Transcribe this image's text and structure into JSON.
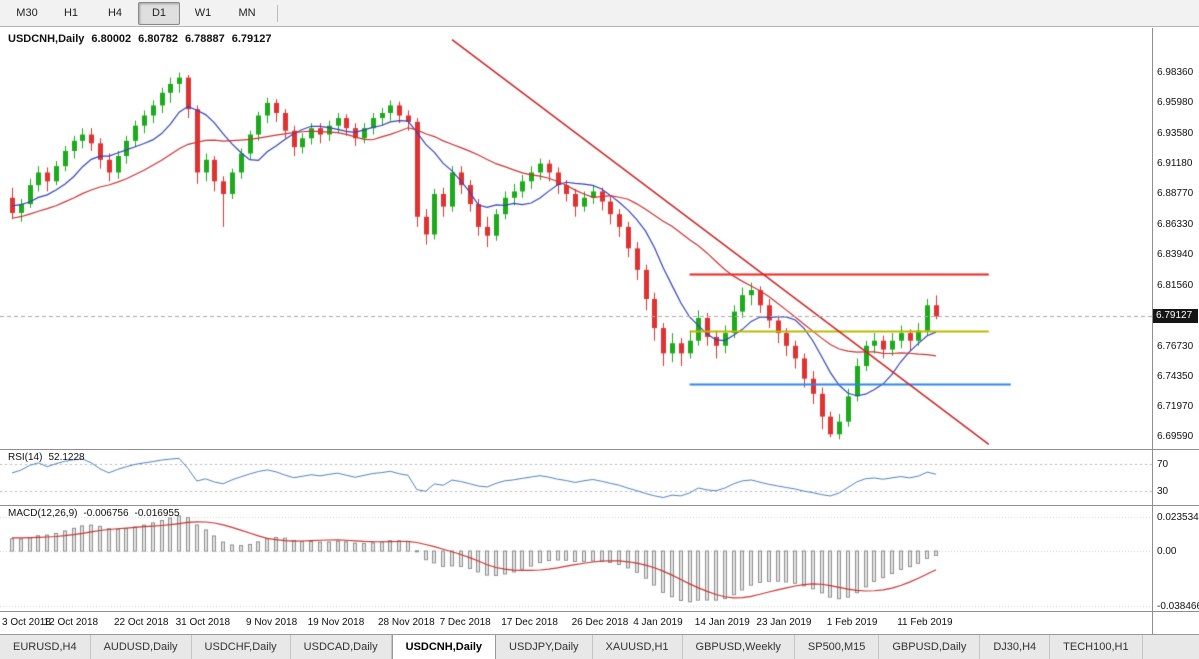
{
  "toolbar": {
    "timeframes": [
      {
        "label": "M30",
        "active": false
      },
      {
        "label": "H1",
        "active": false
      },
      {
        "label": "H4",
        "active": false
      },
      {
        "label": "D1",
        "active": true
      },
      {
        "label": "W1",
        "active": false
      },
      {
        "label": "MN",
        "active": false
      }
    ]
  },
  "chart": {
    "title": {
      "symbol": "USDCNH,Daily",
      "open": "6.80002",
      "high": "6.80782",
      "low": "6.78887",
      "close": "6.79127"
    },
    "current_price": "6.79127"
  },
  "rsi_panel": {
    "name": "RSI(14)",
    "value": "52.1228"
  },
  "macd_panel": {
    "name": "MACD(12,26,9)",
    "value1": "-0.006756",
    "value2": "-0.016955"
  },
  "tabs": [
    {
      "label": "EURUSD,H4",
      "active": false
    },
    {
      "label": "AUDUSD,Daily",
      "active": false
    },
    {
      "label": "USDCHF,Daily",
      "active": false
    },
    {
      "label": "USDCAD,Daily",
      "active": false
    },
    {
      "label": "USDCNH,Daily",
      "active": true
    },
    {
      "label": "USDJPY,Daily",
      "active": false
    },
    {
      "label": "XAUUSD,H1",
      "active": false
    },
    {
      "label": "GBPUSD,Weekly",
      "active": false
    },
    {
      "label": "SP500,M15",
      "active": false
    },
    {
      "label": "GBPUSD,Daily",
      "active": false
    },
    {
      "label": "DJ30,H4",
      "active": false
    },
    {
      "label": "TECH100,H1",
      "active": false
    }
  ],
  "chart_data": {
    "type": "candlestick",
    "title": "USDCNH,Daily",
    "up_color": "#1daa1d",
    "down_color": "#e03232",
    "ylim": [
      6.6864,
      7.0192
    ],
    "price_axis_ticks": [
      "6.98360",
      "6.95980",
      "6.93580",
      "6.91180",
      "6.88770",
      "6.86330",
      "6.83940",
      "6.81560",
      "6.76730",
      "6.74350",
      "6.71970",
      "6.69590"
    ],
    "current_price": 6.79127,
    "x_labels": [
      "3 Oct 2018",
      "12 Oct 2018",
      "22 Oct 2018",
      "31 Oct 2018",
      "9 Nov 2018",
      "19 Nov 2018",
      "28 Nov 2018",
      "7 Dec 2018",
      "17 Dec 2018",
      "26 Dec 2018",
      "4 Jan 2019",
      "14 Jan 2019",
      "23 Jan 2019",
      "1 Feb 2019",
      "11 Feb 2019"
    ],
    "x_label_indices": [
      0,
      7,
      15,
      22,
      30,
      37,
      45,
      52,
      59,
      67,
      74,
      81,
      88,
      96,
      104
    ],
    "candles": [
      [
        6.885,
        6.893,
        6.868,
        6.873
      ],
      [
        6.873,
        6.884,
        6.866,
        6.88
      ],
      [
        6.88,
        6.9,
        6.877,
        6.895
      ],
      [
        6.895,
        6.91,
        6.89,
        6.905
      ],
      [
        6.905,
        6.909,
        6.89,
        6.898
      ],
      [
        6.898,
        6.914,
        6.895,
        6.91
      ],
      [
        6.91,
        6.926,
        6.906,
        6.922
      ],
      [
        6.922,
        6.934,
        6.916,
        6.93
      ],
      [
        6.93,
        6.94,
        6.924,
        6.935
      ],
      [
        6.935,
        6.94,
        6.922,
        6.928
      ],
      [
        6.928,
        6.932,
        6.908,
        6.915
      ],
      [
        6.915,
        6.92,
        6.898,
        6.905
      ],
      [
        6.905,
        6.922,
        6.9,
        6.918
      ],
      [
        6.918,
        6.934,
        6.912,
        6.93
      ],
      [
        6.93,
        6.946,
        6.925,
        6.942
      ],
      [
        6.942,
        6.954,
        6.936,
        6.95
      ],
      [
        6.95,
        6.962,
        6.944,
        6.958
      ],
      [
        6.958,
        6.972,
        6.952,
        6.968
      ],
      [
        6.968,
        6.98,
        6.96,
        6.975
      ],
      [
        6.975,
        6.984,
        6.968,
        6.98
      ],
      [
        6.98,
        6.982,
        6.948,
        6.955
      ],
      [
        6.955,
        6.958,
        6.896,
        6.905
      ],
      [
        6.905,
        6.92,
        6.898,
        6.915
      ],
      [
        6.915,
        6.918,
        6.89,
        6.898
      ],
      [
        6.898,
        6.902,
        6.862,
        6.888
      ],
      [
        6.888,
        6.908,
        6.884,
        6.905
      ],
      [
        6.905,
        6.924,
        6.9,
        6.92
      ],
      [
        6.92,
        6.938,
        6.915,
        6.935
      ],
      [
        6.935,
        6.953,
        6.93,
        6.95
      ],
      [
        6.95,
        6.964,
        6.944,
        6.96
      ],
      [
        6.96,
        6.963,
        6.945,
        6.952
      ],
      [
        6.952,
        6.955,
        6.932,
        6.938
      ],
      [
        6.938,
        6.942,
        6.918,
        6.925
      ],
      [
        6.925,
        6.936,
        6.92,
        6.932
      ],
      [
        6.932,
        6.944,
        6.927,
        6.94
      ],
      [
        6.94,
        6.944,
        6.928,
        6.935
      ],
      [
        6.935,
        6.946,
        6.93,
        6.942
      ],
      [
        6.942,
        6.952,
        6.936,
        6.948
      ],
      [
        6.948,
        6.951,
        6.934,
        6.94
      ],
      [
        6.94,
        6.944,
        6.926,
        6.932
      ],
      [
        6.932,
        6.944,
        6.928,
        6.94
      ],
      [
        6.94,
        6.952,
        6.935,
        6.948
      ],
      [
        6.948,
        6.956,
        6.942,
        6.952
      ],
      [
        6.952,
        6.962,
        6.946,
        6.958
      ],
      [
        6.958,
        6.961,
        6.944,
        6.95
      ],
      [
        6.95,
        6.954,
        6.938,
        6.945
      ],
      [
        6.945,
        6.948,
        6.862,
        6.87
      ],
      [
        6.87,
        6.876,
        6.848,
        6.856
      ],
      [
        6.856,
        6.892,
        6.852,
        6.888
      ],
      [
        6.888,
        6.893,
        6.87,
        6.878
      ],
      [
        6.878,
        6.91,
        6.874,
        6.905
      ],
      [
        6.905,
        6.91,
        6.888,
        6.895
      ],
      [
        6.895,
        6.899,
        6.874,
        6.88
      ],
      [
        6.88,
        6.884,
        6.855,
        6.862
      ],
      [
        6.862,
        6.87,
        6.846,
        6.855
      ],
      [
        6.855,
        6.876,
        6.851,
        6.872
      ],
      [
        6.872,
        6.89,
        6.868,
        6.885
      ],
      [
        6.885,
        6.896,
        6.879,
        6.89
      ],
      [
        6.89,
        6.903,
        6.885,
        6.898
      ],
      [
        6.898,
        6.91,
        6.892,
        6.905
      ],
      [
        6.905,
        6.916,
        6.899,
        6.912
      ],
      [
        6.912,
        6.915,
        6.898,
        6.905
      ],
      [
        6.905,
        6.909,
        6.888,
        6.895
      ],
      [
        6.895,
        6.899,
        6.882,
        6.888
      ],
      [
        6.888,
        6.892,
        6.87,
        6.878
      ],
      [
        6.878,
        6.89,
        6.874,
        6.885
      ],
      [
        6.885,
        6.895,
        6.88,
        6.89
      ],
      [
        6.89,
        6.893,
        6.875,
        6.882
      ],
      [
        6.882,
        6.886,
        6.864,
        6.872
      ],
      [
        6.872,
        6.876,
        6.854,
        6.862
      ],
      [
        6.862,
        6.866,
        6.838,
        6.845
      ],
      [
        6.845,
        6.85,
        6.82,
        6.828
      ],
      [
        6.828,
        6.832,
        6.796,
        6.805
      ],
      [
        6.805,
        6.81,
        6.772,
        6.782
      ],
      [
        6.782,
        6.786,
        6.752,
        6.762
      ],
      [
        6.762,
        6.778,
        6.755,
        6.77
      ],
      [
        6.77,
        6.774,
        6.752,
        6.762
      ],
      [
        6.762,
        6.78,
        6.758,
        6.772
      ],
      [
        6.772,
        6.796,
        6.768,
        6.79
      ],
      [
        6.79,
        6.794,
        6.768,
        6.775
      ],
      [
        6.775,
        6.78,
        6.758,
        6.768
      ],
      [
        6.768,
        6.784,
        6.762,
        6.778
      ],
      [
        6.778,
        6.8,
        6.774,
        6.795
      ],
      [
        6.795,
        6.814,
        6.79,
        6.808
      ],
      [
        6.808,
        6.818,
        6.8,
        6.812
      ],
      [
        6.812,
        6.815,
        6.794,
        6.8
      ],
      [
        6.8,
        6.805,
        6.782,
        6.788
      ],
      [
        6.788,
        6.792,
        6.77,
        6.778
      ],
      [
        6.778,
        6.782,
        6.76,
        6.768
      ],
      [
        6.768,
        6.772,
        6.75,
        6.758
      ],
      [
        6.758,
        6.762,
        6.735,
        6.742
      ],
      [
        6.742,
        6.748,
        6.722,
        6.73
      ],
      [
        6.73,
        6.735,
        6.702,
        6.712
      ],
      [
        6.712,
        6.716,
        6.6956,
        6.698
      ],
      [
        6.698,
        6.714,
        6.694,
        6.708
      ],
      [
        6.708,
        6.734,
        6.704,
        6.728
      ],
      [
        6.728,
        6.758,
        6.724,
        6.752
      ],
      [
        6.752,
        6.772,
        6.748,
        6.768
      ],
      [
        6.768,
        6.778,
        6.762,
        6.772
      ],
      [
        6.772,
        6.776,
        6.758,
        6.765
      ],
      [
        6.765,
        6.778,
        6.76,
        6.772
      ],
      [
        6.772,
        6.784,
        6.766,
        6.778
      ],
      [
        6.778,
        6.781,
        6.764,
        6.772
      ],
      [
        6.772,
        6.786,
        6.768,
        6.78
      ],
      [
        6.78,
        6.805,
        6.776,
        6.8
      ],
      [
        6.80002,
        6.80782,
        6.78887,
        6.79127
      ]
    ],
    "overlays": {
      "ma_fast": {
        "period": 8,
        "color": "#3344bb"
      },
      "ma_slow": {
        "period": 21,
        "color": "#cc3333"
      },
      "trendline": {
        "color": "#cc2222",
        "from": [
          50,
          7.01
        ],
        "to": [
          111,
          6.69
        ]
      },
      "hlines": [
        {
          "price": 6.825,
          "color": "#ee2222",
          "from": 77,
          "to": 111
        },
        {
          "price": 6.78,
          "color": "#b8b800",
          "from": 77,
          "to": 111
        },
        {
          "price": 6.738,
          "color": "#2e86e8",
          "from": 77,
          "to": 113.5
        }
      ]
    },
    "panels": {
      "rsi": {
        "period": 14,
        "color": "#4f81bd",
        "ylim": [
          10,
          90
        ],
        "levels": [
          70,
          30
        ],
        "level_labels": [
          "70",
          "30"
        ],
        "last_value": 52.1228
      },
      "macd": {
        "fast": 12,
        "slow": 26,
        "signal": 9,
        "ylim": [
          -0.042,
          0.031
        ],
        "hist_fill": "#e3e3e3",
        "hist_stroke": "#8f8f8f",
        "signal_color": "#cc3333",
        "axis_ticks": [
          {
            "label": "0.023534",
            "value": 0.023534
          },
          {
            "label": "0.00",
            "value": 0
          },
          {
            "label": "-0.038466",
            "value": -0.038466
          }
        ],
        "last_values": [
          -0.006756,
          -0.016955
        ]
      }
    }
  }
}
